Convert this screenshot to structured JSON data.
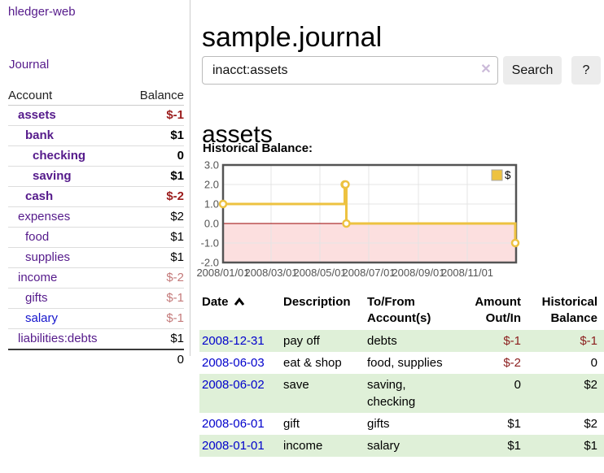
{
  "sidebar": {
    "brand": "hledger-web",
    "journal_link": "Journal",
    "accounts_table": {
      "headers": {
        "account": "Account",
        "balance": "Balance"
      },
      "rows": [
        {
          "name": "assets",
          "level": 1,
          "bold": true,
          "balance": "$-1",
          "balance_style": "neg-strong"
        },
        {
          "name": "bank",
          "level": 2,
          "bold": true,
          "balance": "$1",
          "balance_style": "pos"
        },
        {
          "name": "checking",
          "level": 3,
          "bold": true,
          "balance": "0",
          "balance_style": "pos"
        },
        {
          "name": "saving",
          "level": 3,
          "bold": true,
          "balance": "$1",
          "balance_style": "pos"
        },
        {
          "name": "cash",
          "level": 2,
          "bold": true,
          "balance": "$-2",
          "balance_style": "neg-strong"
        },
        {
          "name": "expenses",
          "level": 1,
          "bold": false,
          "balance": "$2",
          "balance_style": "pos"
        },
        {
          "name": "food",
          "level": 2,
          "bold": false,
          "balance": "$1",
          "balance_style": "pos"
        },
        {
          "name": "supplies",
          "level": 2,
          "bold": false,
          "balance": "$1",
          "balance_style": "pos"
        },
        {
          "name": "income",
          "level": 1,
          "bold": false,
          "balance": "$-2",
          "balance_style": "neg-faded"
        },
        {
          "name": "gifts",
          "level": 2,
          "bold": false,
          "balance": "$-1",
          "balance_style": "neg-faded"
        },
        {
          "name": "salary",
          "level": 2,
          "bold": false,
          "balance": "$-1",
          "balance_style": "neg-faded",
          "link_color": "blue"
        },
        {
          "name": "liabilities:debts",
          "level": 1,
          "bold": false,
          "balance": "$1",
          "balance_style": "pos"
        }
      ],
      "total": "0"
    }
  },
  "main": {
    "title": "sample.journal",
    "search": {
      "value": "inacct:assets",
      "clear_icon": "✕",
      "button_label": "Search",
      "help_label": "?"
    },
    "account_heading": "assets",
    "chart_label": "Historical Balance:",
    "transactions": {
      "columns": [
        {
          "key": "date",
          "label": "Date",
          "align": "left",
          "sorted": "asc"
        },
        {
          "key": "description",
          "label": "Description",
          "align": "left"
        },
        {
          "key": "accounts",
          "label": "To/From\nAccount(s)",
          "align": "left"
        },
        {
          "key": "amount",
          "label": "Amount\nOut/In",
          "align": "right"
        },
        {
          "key": "balance",
          "label": "Historical\nBalance",
          "align": "right"
        }
      ],
      "rows": [
        {
          "date": "2008-12-31",
          "description": "pay off",
          "accounts": "debts",
          "amount": "$-1",
          "amount_negative": true,
          "balance": "$-1",
          "balance_negative": true
        },
        {
          "date": "2008-06-03",
          "description": "eat & shop",
          "accounts": "food, supplies",
          "amount": "$-2",
          "amount_negative": true,
          "balance": "0",
          "balance_negative": false
        },
        {
          "date": "2008-06-02",
          "description": "save",
          "accounts": "saving,\nchecking",
          "amount": "0",
          "amount_negative": false,
          "balance": "$2",
          "balance_negative": false
        },
        {
          "date": "2008-06-01",
          "description": "gift",
          "accounts": "gifts",
          "amount": "$1",
          "amount_negative": false,
          "balance": "$2",
          "balance_negative": false
        },
        {
          "date": "2008-01-01",
          "description": "income",
          "accounts": "salary",
          "amount": "$1",
          "amount_negative": false,
          "balance": "$1",
          "balance_negative": false
        }
      ]
    }
  },
  "chart_data": {
    "type": "line",
    "step": true,
    "title": "Historical Balance:",
    "legend": "$",
    "legend_position": "top-right",
    "series": [
      {
        "name": "$",
        "color": "#edc240",
        "points": [
          {
            "date": "2008-01-01",
            "value": 1
          },
          {
            "date": "2008-06-01",
            "value": 2
          },
          {
            "date": "2008-06-02",
            "value": 2
          },
          {
            "date": "2008-06-03",
            "value": 0
          },
          {
            "date": "2008-12-31",
            "value": -1
          }
        ]
      }
    ],
    "ylim": [
      -2,
      3
    ],
    "yticks": [
      "3.0",
      "2.0",
      "1.0",
      "0.0",
      "-1.0",
      "-2.0"
    ],
    "xticks": [
      "2008/01/01",
      "2008/03/01",
      "2008/05/01",
      "2008/07/01",
      "2008/09/01",
      "2008/11/01"
    ],
    "x_range_days": [
      "2008-01-01",
      "2009-01-01"
    ],
    "grid": true,
    "colors": {
      "negative_region_fill": "#fcdfdf",
      "zero_line": "#990000",
      "plot_border": "#545454",
      "gridline": "#e4e4e4",
      "tick_text": "#545454"
    }
  }
}
